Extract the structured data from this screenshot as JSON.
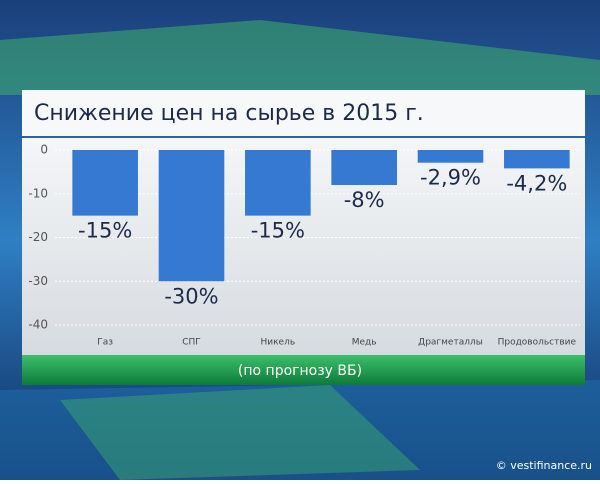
{
  "chart_data": {
    "type": "bar",
    "title": "Снижение цен на сырье в 2015 г.",
    "categories": [
      "Газ",
      "СПГ",
      "Никель",
      "Медь",
      "Драгметаллы",
      "Продовольствие"
    ],
    "values": [
      -15,
      -30,
      -15,
      -8,
      -2.9,
      -4.2
    ],
    "value_labels": [
      "-15%",
      "-30%",
      "-15%",
      "-8%",
      "-2,9%",
      "-4,2%"
    ],
    "color": "#3579d2",
    "ylim": [
      -40,
      0
    ],
    "yticks": [
      0,
      -10,
      -20,
      -30,
      -40
    ],
    "grid": true,
    "note": "(по прогнозу ВБ)",
    "source": "© vestifinance.ru"
  }
}
